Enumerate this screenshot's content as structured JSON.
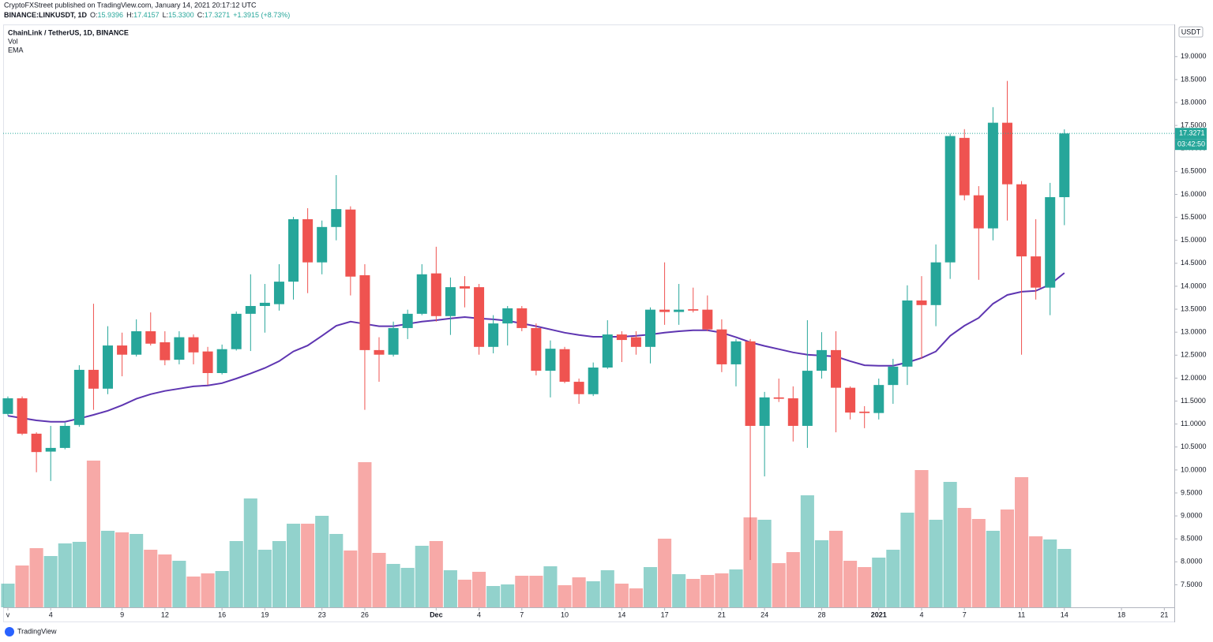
{
  "header": {
    "publisher": "CryptoFXStreet published on TradingView.com, January 14, 2021 20:17:12 UTC",
    "symbol": "BINANCE:LINKUSDT, 1D",
    "ohlc": [
      {
        "label": "O:",
        "value": "15.9396"
      },
      {
        "label": "H:",
        "value": "17.4157"
      },
      {
        "label": "L:",
        "value": "15.3300"
      },
      {
        "label": "C:",
        "value": "17.3271"
      }
    ],
    "change": "+1.3915 (+8.73%)"
  },
  "legend": {
    "title": "ChainLink / TetherUS, 1D, BINANCE",
    "volume": "Vol",
    "ema": "EMA"
  },
  "logo": "TradingView",
  "chart_data": {
    "type": "candlestick",
    "currency": "USDT",
    "countdown": "03:42:50",
    "up_color": "#26a69a",
    "down_color": "#ef5350",
    "ema_color": "#5e35b1",
    "x": [
      0,
      1,
      2,
      3,
      4,
      5,
      6,
      7,
      8,
      9,
      10,
      11,
      12,
      13,
      14,
      15,
      16,
      17,
      18,
      19,
      20,
      21,
      22,
      23,
      24,
      25,
      26,
      27,
      28,
      29,
      30,
      31,
      32,
      33,
      34,
      35,
      36,
      37,
      38,
      39,
      40,
      41,
      42,
      43,
      44,
      45,
      46,
      47,
      48,
      49,
      50,
      51,
      52,
      53,
      54,
      55,
      56,
      57,
      58,
      59,
      60,
      61,
      62,
      63,
      64,
      65,
      66,
      67,
      68,
      69,
      70,
      71,
      72,
      73,
      74
    ],
    "open": [
      11.22,
      11.56,
      10.79,
      10.4,
      10.48,
      10.98,
      12.18,
      11.77,
      12.71,
      12.51,
      13.02,
      12.78,
      12.4,
      12.89,
      12.58,
      12.11,
      12.63,
      13.4,
      13.57,
      13.61,
      14.1,
      15.46,
      14.52,
      15.29,
      15.67,
      14.24,
      12.61,
      12.51,
      13.09,
      13.4,
      14.28,
      13.35,
      14.0,
      13.98,
      12.68,
      13.19,
      13.52,
      13.09,
      12.16,
      12.63,
      11.92,
      11.65,
      12.23,
      12.95,
      12.89,
      12.68,
      13.49,
      13.44,
      13.5,
      13.49,
      13.06,
      12.3,
      12.8,
      10.96,
      11.58,
      11.56,
      10.96,
      12.16,
      12.61,
      11.79,
      11.27,
      11.24,
      11.85,
      12.25,
      13.69,
      13.59,
      14.52,
      17.23,
      15.98,
      15.26,
      17.56,
      16.22,
      14.65,
      13.97,
      15.9396
    ],
    "high": [
      11.6,
      11.6,
      10.82,
      10.96,
      11.03,
      12.28,
      13.62,
      13.13,
      12.99,
      13.28,
      13.43,
      13.02,
      13.02,
      12.95,
      12.68,
      12.73,
      13.45,
      14.26,
      14.05,
      14.48,
      15.51,
      15.7,
      15.43,
      16.42,
      15.74,
      14.48,
      12.89,
      13.23,
      13.49,
      14.48,
      14.86,
      14.19,
      14.22,
      14.05,
      13.37,
      13.57,
      13.57,
      13.19,
      12.82,
      12.68,
      11.99,
      12.34,
      13.26,
      13.02,
      13.02,
      13.54,
      14.52,
      14.05,
      13.97,
      13.8,
      13.28,
      12.85,
      12.85,
      11.7,
      11.99,
      11.82,
      13.26,
      13.0,
      13.02,
      11.82,
      11.39,
      11.99,
      12.42,
      14.02,
      14.22,
      14.91,
      17.32,
      17.42,
      16.18,
      17.9,
      18.47,
      16.29,
      15.46,
      16.25,
      17.4157
    ],
    "low": [
      11.18,
      10.76,
      9.95,
      9.76,
      10.45,
      10.94,
      11.31,
      11.65,
      12.04,
      12.47,
      12.71,
      12.28,
      12.3,
      12.3,
      11.85,
      12.08,
      12.6,
      12.59,
      12.99,
      13.47,
      13.71,
      13.85,
      14.26,
      15.0,
      13.8,
      11.31,
      11.92,
      12.47,
      12.85,
      13.37,
      13.23,
      12.94,
      13.54,
      12.51,
      12.54,
      12.71,
      13.02,
      12.06,
      11.58,
      11.89,
      11.44,
      11.61,
      12.2,
      12.35,
      12.51,
      12.32,
      13.16,
      13.16,
      13.43,
      13.02,
      12.13,
      11.82,
      8.04,
      9.86,
      11.48,
      10.62,
      10.48,
      11.99,
      10.82,
      11.1,
      10.91,
      11.1,
      11.44,
      11.85,
      12.42,
      13.13,
      14.16,
      15.87,
      14.14,
      15.0,
      15.43,
      12.51,
      13.71,
      13.37,
      15.33
    ],
    "close": [
      11.56,
      10.79,
      10.39,
      10.48,
      10.96,
      12.18,
      11.77,
      12.71,
      12.51,
      13.02,
      12.75,
      12.39,
      12.89,
      12.56,
      12.11,
      12.63,
      13.4,
      13.57,
      13.64,
      14.1,
      15.46,
      14.52,
      15.29,
      15.68,
      14.21,
      12.61,
      12.51,
      13.09,
      13.4,
      14.26,
      13.35,
      13.98,
      13.95,
      12.68,
      13.19,
      13.52,
      13.09,
      12.16,
      12.64,
      11.92,
      11.65,
      12.23,
      12.95,
      12.83,
      12.68,
      13.49,
      13.44,
      13.49,
      13.47,
      13.06,
      12.3,
      12.8,
      10.96,
      11.58,
      11.55,
      10.96,
      12.16,
      12.61,
      11.79,
      11.25,
      11.24,
      11.85,
      12.25,
      13.69,
      13.59,
      14.52,
      17.27,
      15.98,
      15.26,
      17.56,
      16.22,
      14.65,
      13.97,
      15.94,
      17.3271
    ],
    "volume": [
      30,
      53,
      75,
      65,
      81,
      83,
      186,
      97,
      95,
      93,
      73,
      67,
      59,
      39,
      43,
      46,
      84,
      138,
      73,
      84,
      106,
      106,
      116,
      93,
      72,
      184,
      69,
      55,
      50,
      78,
      84,
      47,
      35,
      45,
      27,
      29,
      40,
      40,
      52,
      28,
      38,
      33,
      47,
      30,
      24,
      51,
      87,
      42,
      36,
      41,
      43,
      48,
      114,
      111,
      56,
      70,
      142,
      85,
      97,
      59,
      51,
      63,
      73,
      120,
      174,
      111,
      159,
      126,
      112,
      97,
      124,
      165,
      90,
      86,
      74
    ],
    "ema": [
      11.18,
      11.13,
      11.08,
      11.05,
      11.05,
      11.12,
      11.2,
      11.29,
      11.41,
      11.55,
      11.65,
      11.72,
      11.77,
      11.82,
      11.84,
      11.89,
      11.99,
      12.1,
      12.22,
      12.37,
      12.58,
      12.71,
      12.92,
      13.14,
      13.23,
      13.18,
      13.13,
      13.13,
      13.18,
      13.23,
      13.26,
      13.3,
      13.33,
      13.3,
      13.28,
      13.25,
      13.19,
      13.13,
      13.06,
      12.99,
      12.94,
      12.9,
      12.9,
      12.9,
      12.92,
      12.95,
      12.99,
      13.02,
      13.04,
      13.04,
      12.99,
      12.89,
      12.78,
      12.7,
      12.63,
      12.56,
      12.51,
      12.49,
      12.47,
      12.37,
      12.28,
      12.27,
      12.27,
      12.34,
      12.44,
      12.58,
      12.92,
      13.14,
      13.31,
      13.62,
      13.81,
      13.88,
      13.9,
      14.04,
      14.29
    ],
    "xlim": [
      -0.33,
      81.7
    ],
    "ylim": [
      7.01,
      19.7
    ],
    "xticks": [
      {
        "value": 0,
        "label": "v"
      },
      {
        "value": 3,
        "label": "4"
      },
      {
        "value": 8,
        "label": "9"
      },
      {
        "value": 11,
        "label": "12"
      },
      {
        "value": 15,
        "label": "16"
      },
      {
        "value": 18,
        "label": "19"
      },
      {
        "value": 22,
        "label": "23"
      },
      {
        "value": 25,
        "label": "26"
      },
      {
        "value": 30,
        "label": "Dec"
      },
      {
        "value": 33,
        "label": "4"
      },
      {
        "value": 36,
        "label": "7"
      },
      {
        "value": 39,
        "label": "10"
      },
      {
        "value": 43,
        "label": "14"
      },
      {
        "value": 46,
        "label": "17"
      },
      {
        "value": 50,
        "label": "21"
      },
      {
        "value": 53,
        "label": "24"
      },
      {
        "value": 57,
        "label": "28"
      },
      {
        "value": 61,
        "label": "2021"
      },
      {
        "value": 64,
        "label": "4"
      },
      {
        "value": 67,
        "label": "7"
      },
      {
        "value": 71,
        "label": "11"
      },
      {
        "value": 74,
        "label": "14"
      },
      {
        "value": 78,
        "label": "18"
      },
      {
        "value": 81,
        "label": "21"
      }
    ],
    "yticks": [
      {
        "value": 7.5,
        "label": "7.5000"
      },
      {
        "value": 8,
        "label": "8.0000"
      },
      {
        "value": 8.5,
        "label": "8.5000"
      },
      {
        "value": 9,
        "label": "9.0000"
      },
      {
        "value": 9.5,
        "label": "9.5000"
      },
      {
        "value": 10,
        "label": "10.0000"
      },
      {
        "value": 10.5,
        "label": "10.5000"
      },
      {
        "value": 11,
        "label": "11.0000"
      },
      {
        "value": 11.5,
        "label": "11.5000"
      },
      {
        "value": 12,
        "label": "12.0000"
      },
      {
        "value": 12.5,
        "label": "12.5000"
      },
      {
        "value": 13,
        "label": "13.0000"
      },
      {
        "value": 13.5,
        "label": "13.5000"
      },
      {
        "value": 14,
        "label": "14.0000"
      },
      {
        "value": 14.5,
        "label": "14.5000"
      },
      {
        "value": 15,
        "label": "15.0000"
      },
      {
        "value": 15.5,
        "label": "15.5000"
      },
      {
        "value": 16,
        "label": "16.0000"
      },
      {
        "value": 16.5,
        "label": "16.5000"
      },
      {
        "value": 17,
        "label": "17.0000"
      },
      {
        "value": 17.5,
        "label": "17.5000"
      },
      {
        "value": 18,
        "label": "18.0000"
      },
      {
        "value": 18.5,
        "label": "18.5000"
      },
      {
        "value": 19,
        "label": "19.0000"
      }
    ],
    "grid": false
  }
}
